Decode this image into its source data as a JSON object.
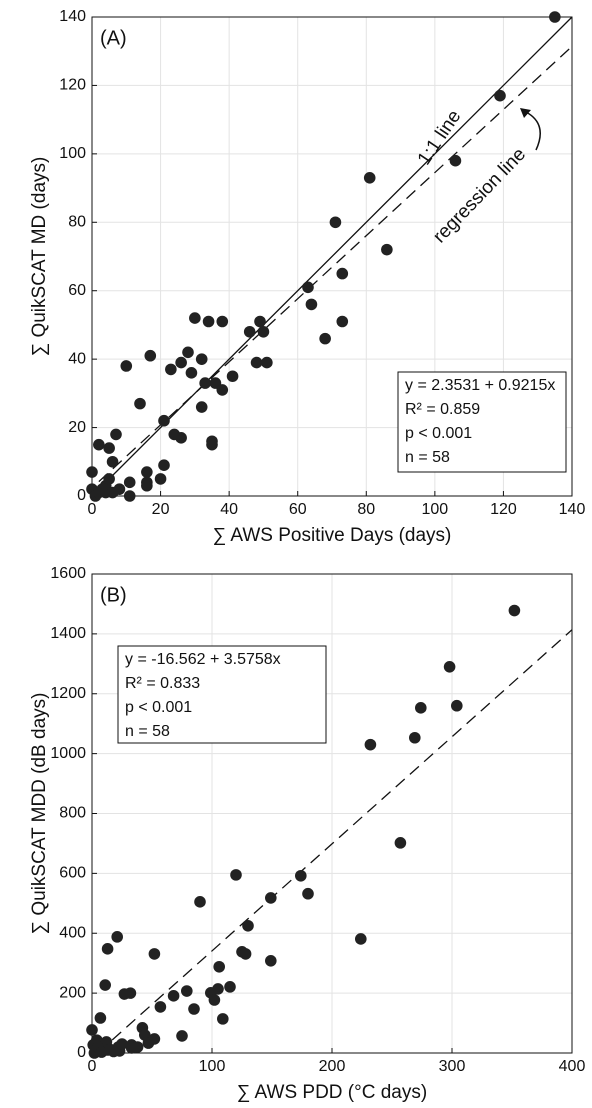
{
  "chart_data": [
    {
      "type": "scatter",
      "panel_label": "(A)",
      "xlabel": "∑ AWS Positive Days (days)",
      "ylabel": "∑ QuikSCAT MD (days)",
      "x": [
        0,
        0,
        1,
        2,
        2,
        3,
        4,
        4,
        5,
        5,
        6,
        7,
        6,
        8,
        10,
        11,
        11,
        14,
        16,
        16,
        16,
        17,
        20,
        21,
        21,
        23,
        24,
        26,
        26,
        28,
        29,
        30,
        32,
        32,
        33,
        34,
        35,
        35,
        36,
        38,
        38,
        41,
        46,
        48,
        49,
        50,
        51,
        63,
        64,
        68,
        71,
        73,
        73,
        81,
        86,
        106,
        119,
        135
      ],
      "y": [
        7,
        2,
        0,
        15,
        1,
        2,
        3,
        1,
        14,
        5,
        1,
        18,
        10,
        2,
        38,
        4,
        0,
        27,
        7,
        4,
        3,
        41,
        5,
        22,
        9,
        37,
        18,
        39,
        17,
        42,
        36,
        52,
        40,
        26,
        33,
        51,
        16,
        15,
        33,
        51,
        31,
        35,
        48,
        39,
        51,
        48,
        39,
        61,
        56,
        46,
        80,
        65,
        51,
        93,
        72,
        98,
        117,
        140
      ],
      "color": "#222222",
      "xlim": [
        0,
        140
      ],
      "ylim": [
        0,
        140
      ],
      "xticks": [
        0,
        20,
        40,
        60,
        80,
        100,
        120,
        140
      ],
      "yticks": [
        0,
        20,
        40,
        60,
        80,
        100,
        120,
        140
      ],
      "grid": true,
      "lines": [
        {
          "label": "1:1 line",
          "x": [
            0,
            140
          ],
          "y": [
            0,
            140
          ],
          "dashed": false
        },
        {
          "label": "regression line",
          "x": [
            2,
            140
          ],
          "y": [
            4.2,
            131.4
          ],
          "dashed": true
        }
      ],
      "stats": [
        "y = 2.3531 + 0.9215x",
        "R² = 0.859",
        "p < 0.001",
        "n = 58"
      ]
    },
    {
      "type": "scatter",
      "panel_label": "(B)",
      "xlabel": "∑ AWS PDD (°C days)",
      "ylabel": "∑ QuikSCAT MDD (dB days)",
      "x": [
        0,
        1,
        2,
        4,
        6,
        7,
        9,
        11,
        12,
        13,
        13,
        21,
        22,
        23,
        27,
        32,
        33,
        33,
        42,
        44,
        47,
        52,
        52,
        57,
        68,
        75,
        79,
        85,
        90,
        99,
        102,
        105,
        106,
        109,
        115,
        120,
        125,
        128,
        130,
        149,
        149,
        174,
        180,
        224,
        232,
        257,
        269,
        274,
        298,
        304,
        352,
        3,
        5,
        8,
        15,
        18,
        25,
        38
      ],
      "y": [
        77,
        27,
        0,
        43,
        10,
        117,
        17,
        227,
        37,
        10,
        348,
        388,
        20,
        7,
        197,
        200,
        27,
        17,
        84,
        60,
        33,
        47,
        331,
        154,
        191,
        57,
        207,
        147,
        505,
        201,
        177,
        214,
        288,
        114,
        221,
        595,
        338,
        331,
        425,
        518,
        308,
        592,
        532,
        381,
        1030,
        702,
        1053,
        1153,
        1290,
        1160,
        1478,
        5,
        20,
        3,
        12,
        5,
        30,
        20
      ],
      "color": "#222222",
      "xlim": [
        0,
        400
      ],
      "ylim": [
        0,
        1600
      ],
      "xticks": [
        0,
        100,
        200,
        300,
        400
      ],
      "yticks": [
        0,
        200,
        400,
        600,
        800,
        1000,
        1200,
        1400,
        1600
      ],
      "grid": true,
      "lines": [
        {
          "x": [
            5,
            400
          ],
          "y": [
            1.3,
            1413.8
          ],
          "dashed": true
        }
      ],
      "stats": [
        "y = -16.562 + 3.5758x",
        "R² = 0.833",
        "p < 0.001",
        "n = 58"
      ]
    }
  ]
}
